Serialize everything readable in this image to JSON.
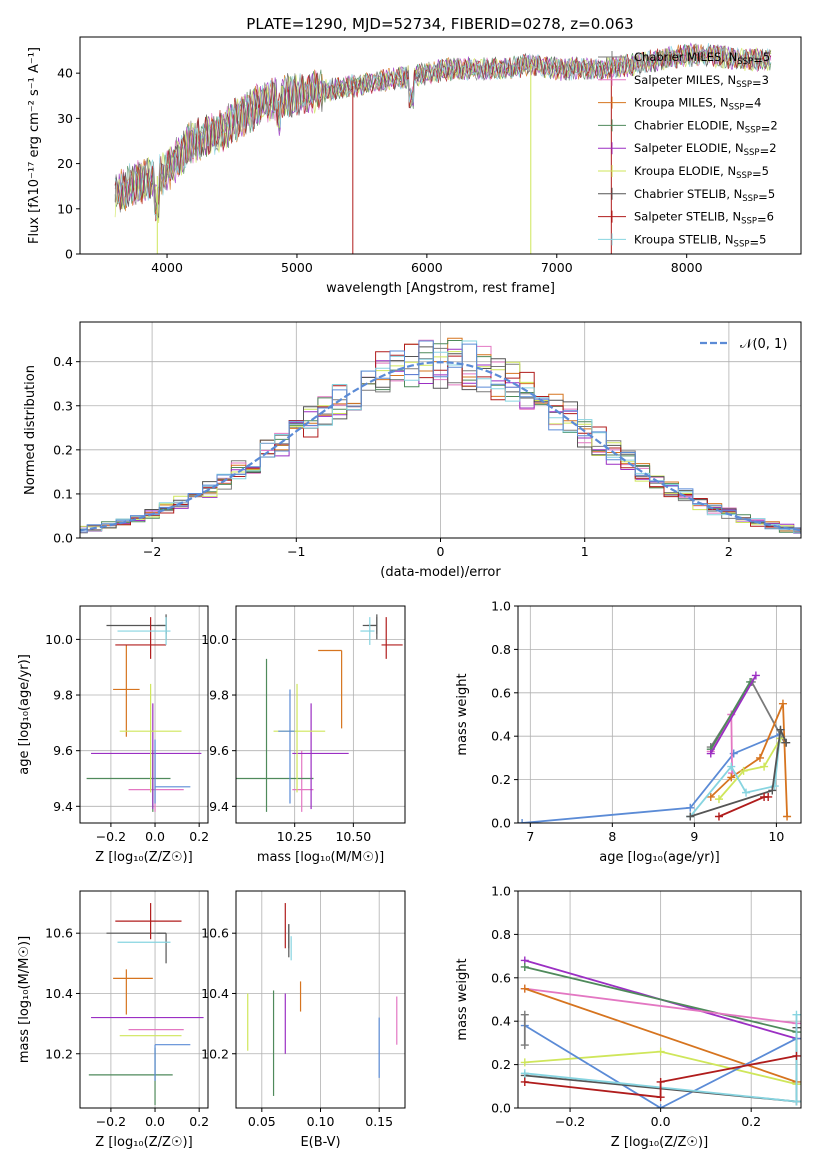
{
  "figure_title": "PLATE=1290, MJD=52734, FIBERID=0278, z=0.063",
  "colors": {
    "Chabrier MILES": "#7a7a7a",
    "Salpeter MILES": "#e377c2",
    "Kroupa MILES": "#d6741f",
    "Chabrier ELODIE": "#4f8a5b",
    "Salpeter ELODIE": "#9b2fc3",
    "Kroupa ELODIE": "#cfe65a",
    "Chabrier STELIB": "#555555",
    "Salpeter STELIB": "#b01c1c",
    "Kroupa STELIB": "#87d4e0",
    "normal": "#5b8bd6"
  },
  "chart_data": [
    {
      "id": "spectrum",
      "type": "line",
      "title": "PLATE=1290, MJD=52734, FIBERID=0278, z=0.063",
      "xlabel": "wavelength [Angstrom, rest frame]",
      "ylabel": "Flux [fλ10⁻¹⁷ erg cm⁻² s⁻¹ A⁻¹]",
      "xlim": [
        3330,
        8880
      ],
      "ylim": [
        0,
        48
      ],
      "xticks": [
        4000,
        5000,
        6000,
        7000,
        8000
      ],
      "yticks": [
        0,
        10,
        20,
        30,
        40
      ],
      "grid": false,
      "legend_position": "top-right",
      "legend": [
        {
          "name": "Chabrier MILES",
          "nssp": "5"
        },
        {
          "name": "Salpeter MILES",
          "nssp": "3"
        },
        {
          "name": "Kroupa MILES",
          "nssp": "4"
        },
        {
          "name": "Chabrier ELODIE",
          "nssp": "2"
        },
        {
          "name": "Salpeter ELODIE",
          "nssp": "2"
        },
        {
          "name": "Kroupa ELODIE",
          "nssp": "5"
        },
        {
          "name": "Chabrier STELIB",
          "nssp": "5"
        },
        {
          "name": "Salpeter STELIB",
          "nssp": "6"
        },
        {
          "name": "Kroupa STELIB",
          "nssp": "5"
        }
      ],
      "continuum": {
        "x": [
          3600,
          3700,
          3800,
          3900,
          4000,
          4100,
          4200,
          4300,
          4400,
          4500,
          4600,
          4700,
          4800,
          4900,
          5000,
          5200,
          5400,
          5600,
          5800,
          6000,
          6200,
          6400,
          6600,
          6800,
          7000,
          7200,
          7400,
          7600,
          7800,
          8000,
          8200,
          8400,
          8600
        ],
        "y": [
          13,
          15,
          16,
          17,
          18,
          22,
          25,
          26,
          27,
          29,
          31,
          33,
          34,
          35,
          35,
          36,
          37,
          38,
          39,
          40,
          41,
          41,
          41,
          42,
          41,
          41,
          41,
          42,
          43,
          44,
          44,
          43,
          43
        ]
      },
      "dropouts": [
        3925,
        5430,
        6800,
        7420
      ]
    },
    {
      "id": "residuals",
      "type": "histogram",
      "xlabel": "(data-model)/error",
      "ylabel": "Normed distribution",
      "xlim": [
        -2.5,
        2.5
      ],
      "ylim": [
        0,
        0.49
      ],
      "xticks": [
        -2,
        -1,
        0,
        1,
        2
      ],
      "yticks": [
        0.0,
        0.1,
        0.2,
        0.3,
        0.4
      ],
      "grid": true,
      "legend_position": "top-right",
      "legend_label": "𝒩(0, 1)",
      "bin_width": 0.1
    },
    {
      "id": "age-vs-Z",
      "type": "errorbar",
      "xlabel": "Z [log₁₀(Z/Z☉)]",
      "ylabel": "age  [log₁₀(age/yr)]",
      "xlim": [
        -0.34,
        0.24
      ],
      "ylim": [
        9.34,
        10.12
      ],
      "xticks": [
        -0.2,
        0.0,
        0.2
      ],
      "yticks": [
        9.4,
        9.6,
        9.8,
        10.0
      ],
      "grid": true,
      "points": [
        {
          "series": "Chabrier MILES",
          "x": 0.05,
          "y": 10.05,
          "xerr": [
            0.04,
            0.0
          ],
          "yerr": [
            0.03,
            0.03
          ]
        },
        {
          "series": "Salpeter MILES",
          "x": 0.0,
          "y": 9.46,
          "xerr": [
            0.12,
            0.13
          ],
          "yerr": [
            0.08,
            0.14
          ]
        },
        {
          "series": "Kroupa MILES",
          "x": -0.13,
          "y": 9.82,
          "xerr": [
            0.06,
            0.06
          ],
          "yerr": [
            0.17,
            0.16
          ]
        },
        {
          "series": "Chabrier ELODIE",
          "x": -0.01,
          "y": 9.5,
          "xerr": [
            0.3,
            0.08
          ],
          "yerr": [
            0.12,
            0.1
          ]
        },
        {
          "series": "Salpeter ELODIE",
          "x": -0.01,
          "y": 9.59,
          "xerr": [
            0.28,
            0.22
          ],
          "yerr": [
            0.2,
            0.18
          ]
        },
        {
          "series": "Kroupa ELODIE",
          "x": -0.02,
          "y": 9.67,
          "xerr": [
            0.14,
            0.14
          ],
          "yerr": [
            0.22,
            0.17
          ]
        },
        {
          "series": "Chabrier STELIB",
          "x": 0.05,
          "y": 10.05,
          "xerr": [
            0.27,
            0.0
          ],
          "yerr": [
            0.05,
            0.04
          ]
        },
        {
          "series": "Salpeter STELIB",
          "x": -0.02,
          "y": 9.98,
          "xerr": [
            0.16,
            0.07
          ],
          "yerr": [
            0.05,
            0.1
          ]
        },
        {
          "series": "Kroupa STELIB",
          "x": 0.05,
          "y": 10.03,
          "xerr": [
            0.22,
            0.02
          ],
          "yerr": [
            0.05,
            0.05
          ]
        },
        {
          "series": "normal",
          "x": 0.0,
          "y": 9.47,
          "xerr": [
            0.0,
            0.16
          ],
          "yerr": [
            0.06,
            0.17
          ]
        }
      ]
    },
    {
      "id": "age-vs-mass",
      "type": "errorbar",
      "xlabel": "mass [log₁₀(M/M☉)]",
      "ylabel": "",
      "xlim": [
        10.0,
        10.72
      ],
      "ylim": [
        9.34,
        10.12
      ],
      "xticks": [
        10.25,
        10.5
      ],
      "yticks": [
        9.4,
        9.6,
        9.8,
        10.0
      ],
      "grid": true,
      "points": [
        {
          "series": "Chabrier MILES",
          "x": 10.6,
          "y": 10.05,
          "xerr": [
            0.04,
            0.0
          ],
          "yerr": [
            0.03,
            0.03
          ]
        },
        {
          "series": "Salpeter MILES",
          "x": 10.28,
          "y": 9.46,
          "xerr": [
            0.04,
            0.05
          ],
          "yerr": [
            0.08,
            0.14
          ]
        },
        {
          "series": "Kroupa MILES",
          "x": 10.45,
          "y": 9.96,
          "xerr": [
            0.1,
            0.0
          ],
          "yerr": [
            0.28,
            0.0
          ]
        },
        {
          "series": "Chabrier ELODIE",
          "x": 10.13,
          "y": 9.5,
          "xerr": [
            0.13,
            0.2
          ],
          "yerr": [
            0.12,
            0.43
          ]
        },
        {
          "series": "Salpeter ELODIE",
          "x": 10.32,
          "y": 9.59,
          "xerr": [
            0.08,
            0.16
          ],
          "yerr": [
            0.2,
            0.18
          ]
        },
        {
          "series": "Kroupa ELODIE",
          "x": 10.26,
          "y": 9.67,
          "xerr": [
            0.1,
            0.12
          ],
          "yerr": [
            0.22,
            0.17
          ]
        },
        {
          "series": "Chabrier STELIB",
          "x": 10.6,
          "y": 10.05,
          "xerr": [
            0.06,
            0.0
          ],
          "yerr": [
            0.05,
            0.04
          ]
        },
        {
          "series": "Salpeter STELIB",
          "x": 10.64,
          "y": 9.98,
          "xerr": [
            0.02,
            0.07
          ],
          "yerr": [
            0.05,
            0.1
          ]
        },
        {
          "series": "Kroupa STELIB",
          "x": 10.57,
          "y": 10.03,
          "xerr": [
            0.04,
            0.02
          ],
          "yerr": [
            0.05,
            0.05
          ]
        },
        {
          "series": "normal",
          "x": 10.23,
          "y": 9.67,
          "xerr": [
            0.05,
            0.02
          ],
          "yerr": [
            0.26,
            0.15
          ]
        }
      ]
    },
    {
      "id": "massweight-vs-age",
      "type": "line",
      "xlabel": "age  [log₁₀(age/yr)]",
      "ylabel": "mass weight",
      "xlim": [
        6.85,
        10.3
      ],
      "ylim": [
        0.0,
        1.0
      ],
      "xticks": [
        7,
        8,
        9,
        10
      ],
      "yticks": [
        0.0,
        0.2,
        0.4,
        0.6,
        0.8,
        1.0
      ],
      "grid": true,
      "series": [
        {
          "name": "normal",
          "x": [
            6.9,
            8.95,
            9.48,
            10.05
          ],
          "y": [
            0.0,
            0.07,
            0.32,
            0.41
          ]
        },
        {
          "name": "Chabrier MILES",
          "x": [
            9.2,
            9.7,
            10.1
          ],
          "y": [
            0.35,
            0.65,
            0.37
          ]
        },
        {
          "name": "Salpeter MILES",
          "x": [
            9.2,
            9.45,
            9.46
          ],
          "y": [
            0.33,
            0.5,
            0.23
          ]
        },
        {
          "name": "Kroupa MILES",
          "x": [
            9.2,
            9.45,
            9.8,
            10.08,
            10.13
          ],
          "y": [
            0.12,
            0.21,
            0.3,
            0.55,
            0.03
          ]
        },
        {
          "name": "Chabrier ELODIE",
          "x": [
            9.2,
            9.68
          ],
          "y": [
            0.34,
            0.65
          ]
        },
        {
          "name": "Salpeter ELODIE",
          "x": [
            9.2,
            9.75
          ],
          "y": [
            0.32,
            0.68
          ]
        },
        {
          "name": "Kroupa ELODIE",
          "x": [
            9.3,
            9.6,
            9.85,
            10.05
          ],
          "y": [
            0.11,
            0.24,
            0.26,
            0.39
          ]
        },
        {
          "name": "Kroupa STELIB",
          "x": [
            8.95,
            9.45,
            9.63,
            9.98,
            10.05
          ],
          "y": [
            0.03,
            0.26,
            0.14,
            0.17,
            0.43
          ]
        },
        {
          "name": "Chabrier STELIB",
          "x": [
            8.95,
            9.95,
            10.05,
            10.12
          ],
          "y": [
            0.03,
            0.15,
            0.43,
            0.37
          ]
        },
        {
          "name": "Salpeter STELIB",
          "x": [
            9.3,
            9.85,
            9.9
          ],
          "y": [
            0.03,
            0.12,
            0.12
          ]
        }
      ]
    },
    {
      "id": "mass-vs-Z",
      "type": "errorbar",
      "xlabel": "Z [log₁₀(Z/Z☉)]",
      "ylabel": "mass [log₁₀(M/M☉)]",
      "xlim": [
        -0.34,
        0.24
      ],
      "ylim": [
        10.02,
        10.74
      ],
      "xticks": [
        -0.2,
        0.0,
        0.2
      ],
      "yticks": [
        10.2,
        10.4,
        10.6
      ],
      "grid": true,
      "points": [
        {
          "series": "Chabrier MILES",
          "x": 0.05,
          "y": 10.6,
          "xerr": [
            0.04,
            0.0
          ],
          "yerr": [
            0.0,
            0.0
          ]
        },
        {
          "series": "Salpeter MILES",
          "x": 0.0,
          "y": 10.28,
          "xerr": [
            0.12,
            0.13
          ],
          "yerr": [
            0.0,
            0.0
          ]
        },
        {
          "series": "Kroupa MILES",
          "x": -0.13,
          "y": 10.45,
          "xerr": [
            0.06,
            0.12
          ],
          "yerr": [
            0.12,
            0.03
          ]
        },
        {
          "series": "Chabrier ELODIE",
          "x": 0.0,
          "y": 10.13,
          "xerr": [
            0.3,
            0.08
          ],
          "yerr": [
            0.1,
            0.09
          ]
        },
        {
          "series": "Salpeter ELODIE",
          "x": 0.0,
          "y": 10.32,
          "xerr": [
            0.29,
            0.22
          ],
          "yerr": [
            0.0,
            0.0
          ]
        },
        {
          "series": "Kroupa ELODIE",
          "x": -0.02,
          "y": 10.26,
          "xerr": [
            0.14,
            0.14
          ],
          "yerr": [
            0.0,
            0.0
          ]
        },
        {
          "series": "Chabrier STELIB",
          "x": 0.05,
          "y": 10.6,
          "xerr": [
            0.27,
            0.0
          ],
          "yerr": [
            0.1,
            0.0
          ]
        },
        {
          "series": "Salpeter STELIB",
          "x": -0.02,
          "y": 10.64,
          "xerr": [
            0.16,
            0.14
          ],
          "yerr": [
            0.06,
            0.06
          ]
        },
        {
          "series": "Kroupa STELIB",
          "x": 0.05,
          "y": 10.57,
          "xerr": [
            0.22,
            0.02
          ],
          "yerr": [
            0.0,
            0.0
          ]
        },
        {
          "series": "normal",
          "x": 0.0,
          "y": 10.23,
          "xerr": [
            0.0,
            0.16
          ],
          "yerr": [
            0.12,
            0.0
          ]
        }
      ]
    },
    {
      "id": "mass-vs-EBV",
      "type": "errorbar",
      "xlabel": "E(B-V)",
      "ylabel": "",
      "xlim": [
        0.028,
        0.172
      ],
      "ylim": [
        10.02,
        10.74
      ],
      "xticks": [
        0.05,
        0.1,
        0.15
      ],
      "yticks": [
        10.2,
        10.4,
        10.6
      ],
      "grid": true,
      "points": [
        {
          "series": "Chabrier MILES",
          "x": 0.073,
          "y": 10.55,
          "xerr": [
            0.0,
            0.0
          ],
          "yerr": [
            0.0,
            0.08
          ]
        },
        {
          "series": "Salpeter MILES",
          "x": 0.165,
          "y": 10.31,
          "xerr": [
            0.0,
            0.0
          ],
          "yerr": [
            0.08,
            0.08
          ]
        },
        {
          "series": "Kroupa MILES",
          "x": 0.083,
          "y": 10.39,
          "xerr": [
            0.0,
            0.0
          ],
          "yerr": [
            0.05,
            0.05
          ]
        },
        {
          "series": "Chabrier ELODIE",
          "x": 0.06,
          "y": 10.23,
          "xerr": [
            0.0,
            0.0
          ],
          "yerr": [
            0.17,
            0.18
          ]
        },
        {
          "series": "Salpeter ELODIE",
          "x": 0.07,
          "y": 10.3,
          "xerr": [
            0.0,
            0.0
          ],
          "yerr": [
            0.1,
            0.1
          ]
        },
        {
          "series": "Kroupa ELODIE",
          "x": 0.038,
          "y": 10.3,
          "xerr": [
            0.0,
            0.0
          ],
          "yerr": [
            0.09,
            0.1
          ]
        },
        {
          "series": "Chabrier STELIB",
          "x": 0.073,
          "y": 10.58,
          "xerr": [
            0.0,
            0.0
          ],
          "yerr": [
            0.06,
            0.05
          ]
        },
        {
          "series": "Salpeter STELIB",
          "x": 0.07,
          "y": 10.6,
          "xerr": [
            0.0,
            0.0
          ],
          "yerr": [
            0.05,
            0.1
          ]
        },
        {
          "series": "Kroupa STELIB",
          "x": 0.075,
          "y": 10.56,
          "xerr": [
            0.0,
            0.0
          ],
          "yerr": [
            0.05,
            0.03
          ]
        },
        {
          "series": "normal",
          "x": 0.15,
          "y": 10.22,
          "xerr": [
            0.0,
            0.0
          ],
          "yerr": [
            0.1,
            0.1
          ]
        }
      ]
    },
    {
      "id": "massweight-vs-Z",
      "type": "line",
      "xlabel": "Z [log₁₀(Z/Z☉)]",
      "ylabel": "mass weight",
      "xlim": [
        -0.315,
        0.31
      ],
      "ylim": [
        0.0,
        1.0
      ],
      "xticks": [
        -0.2,
        0.0,
        0.2
      ],
      "yticks": [
        0.0,
        0.2,
        0.4,
        0.6,
        0.8,
        1.0
      ],
      "grid": true,
      "series": [
        {
          "name": "Salpeter ELODIE",
          "x": [
            -0.3,
            0.3
          ],
          "y": [
            0.68,
            0.32
          ]
        },
        {
          "name": "Chabrier ELODIE",
          "x": [
            -0.3,
            0.3
          ],
          "y": [
            0.65,
            0.35
          ]
        },
        {
          "name": "Salpeter MILES",
          "x": [
            -0.3,
            0.3
          ],
          "y": [
            0.55,
            0.39
          ]
        },
        {
          "name": "Kroupa MILES",
          "x": [
            -0.3,
            0.3
          ],
          "y": [
            0.55,
            0.12
          ]
        },
        {
          "name": "Kroupa ELODIE",
          "x": [
            -0.3,
            0.0,
            0.3
          ],
          "y": [
            0.21,
            0.26,
            0.11
          ]
        },
        {
          "name": "normal",
          "x": [
            -0.3,
            0.0,
            0.3
          ],
          "y": [
            0.38,
            0.0,
            0.32
          ]
        },
        {
          "name": "Chabrier STELIB",
          "x": [
            -0.3,
            0.3,
            0.3
          ],
          "y": [
            0.15,
            0.03,
            0.37
          ]
        },
        {
          "name": "Kroupa STELIB",
          "x": [
            -0.3,
            0.3,
            0.3
          ],
          "y": [
            0.16,
            0.03,
            0.43
          ]
        },
        {
          "name": "Salpeter STELIB",
          "x": [
            -0.3,
            0.0,
            0.0,
            0.3
          ],
          "y": [
            0.12,
            0.05,
            0.12,
            0.24
          ]
        },
        {
          "name": "Chabrier MILES",
          "x": [
            -0.3,
            -0.3
          ],
          "y": [
            0.43,
            0.29
          ]
        }
      ]
    }
  ]
}
